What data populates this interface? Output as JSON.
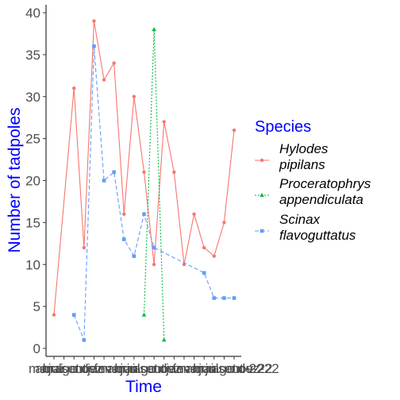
{
  "chart_data": {
    "type": "line",
    "xlabel": "Time",
    "ylabel": "Number of tadpoles",
    "ylim": [
      0,
      40
    ],
    "yticks": [
      0,
      5,
      10,
      15,
      20,
      25,
      30,
      35,
      40
    ],
    "grid": false,
    "legend_position": "right",
    "legend_title": "Species",
    "categories": [
      "mar-21",
      "abr-21",
      "mai-21",
      "jun-21",
      "jul-21",
      "ago-21",
      "set-21",
      "out-21",
      "nov-21",
      "dez-21",
      "jan-22",
      "fev-22",
      "mar-22",
      "abr-22",
      "mai-22",
      "jun-22",
      "jul-22",
      "ago-22",
      "set-22",
      "out-22",
      "nov-22",
      "dez-22",
      "jan-23",
      "fev-23",
      "mar-23",
      "abr-23",
      "mai-23",
      "jun-23",
      "jul-23",
      "ago-23",
      "set-23",
      "out-23",
      "nov-22",
      "dez-22"
    ],
    "x_tick_labels": [
      "mar",
      "abr",
      "mai",
      "jul",
      "ago",
      "set",
      "out",
      "nov",
      "dez",
      "jan",
      "fev",
      "mar",
      "abr",
      "mai",
      "jun",
      "jul",
      "ago",
      "set",
      "out",
      "nov",
      "dez",
      "jan",
      "fev",
      "mar",
      "abr",
      "mai",
      "jun",
      "jul",
      "ago",
      "set",
      "out",
      "nov-22",
      "dez-22",
      "-22"
    ],
    "series": [
      {
        "name": "Hylodes pipilans",
        "legend_lines": [
          "Hylodes",
          "pipilans"
        ],
        "color": "#F8766D",
        "dash": "solid",
        "marker": "circle",
        "points": [
          [
            0,
            4
          ],
          [
            2,
            31
          ],
          [
            3,
            12
          ],
          [
            4,
            39
          ],
          [
            5,
            32
          ],
          [
            6,
            34
          ],
          [
            7,
            16
          ],
          [
            8,
            30
          ],
          [
            9,
            21
          ],
          [
            10,
            10
          ],
          [
            11,
            27
          ],
          [
            12,
            21
          ],
          [
            13,
            10
          ],
          [
            14,
            16
          ],
          [
            15,
            12
          ],
          [
            16,
            11
          ],
          [
            17,
            15
          ],
          [
            18,
            26
          ]
        ]
      },
      {
        "name": "Proceratophrys appendiculata",
        "legend_lines": [
          "Proceratophrys",
          "appendiculata"
        ],
        "color": "#00BA38",
        "dash": "dotted",
        "marker": "triangle",
        "points": [
          [
            9,
            4
          ],
          [
            10,
            38
          ],
          [
            11,
            1
          ]
        ]
      },
      {
        "name": "Scinax flavoguttatus",
        "legend_lines": [
          "Scinax",
          "flavoguttatus"
        ],
        "color": "#619CFF",
        "dash": "dashed",
        "marker": "square",
        "points": [
          [
            2,
            4
          ],
          [
            3,
            1
          ],
          [
            4,
            36
          ],
          [
            5,
            20
          ],
          [
            6,
            21
          ],
          [
            7,
            13
          ],
          [
            8,
            11
          ],
          [
            9,
            16
          ],
          [
            10,
            12
          ],
          [
            15,
            9
          ],
          [
            16,
            6
          ],
          [
            17,
            6
          ],
          [
            18,
            6
          ]
        ]
      }
    ]
  }
}
